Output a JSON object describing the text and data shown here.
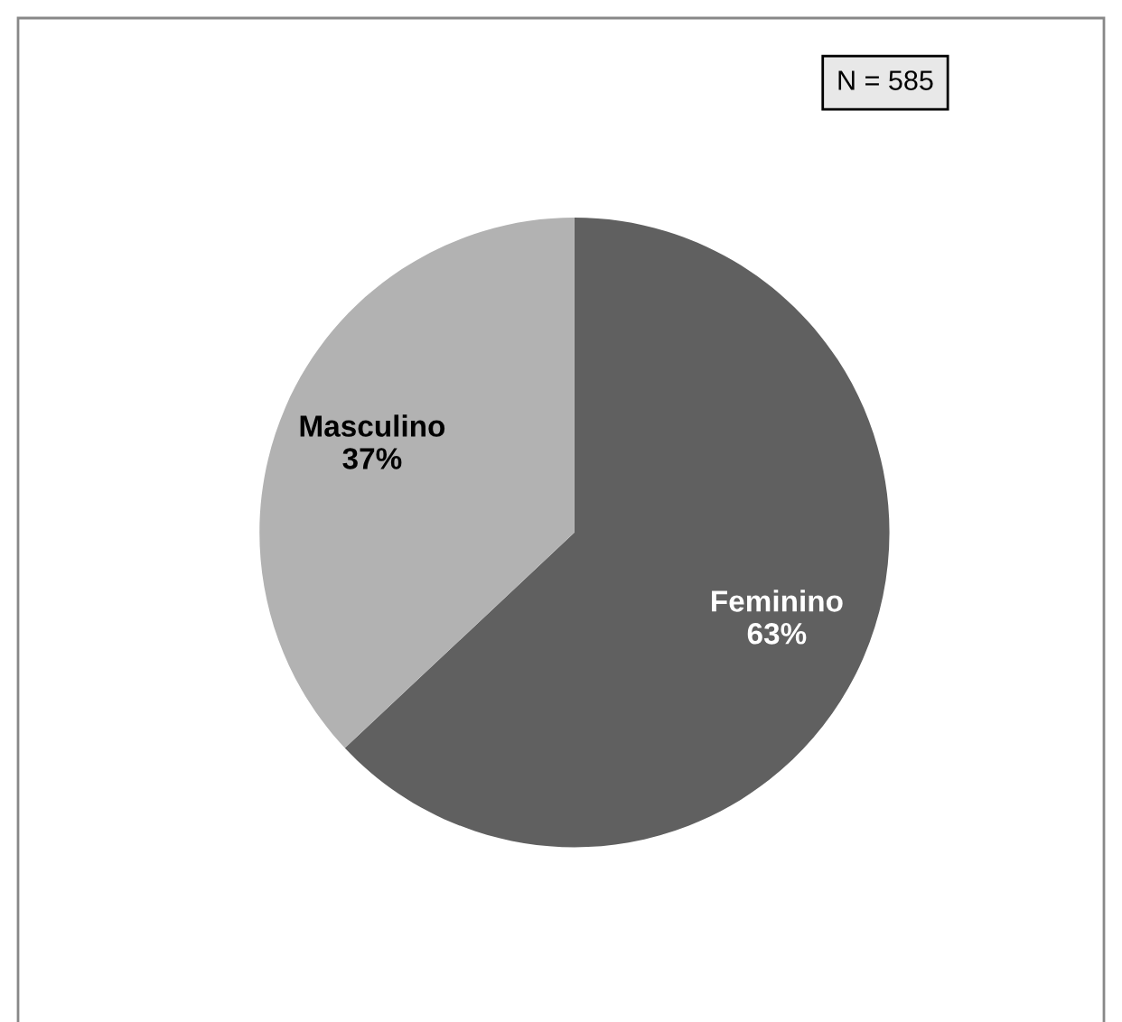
{
  "chart_data": {
    "type": "pie",
    "categories": [
      "Feminino",
      "Masculino"
    ],
    "values": [
      63,
      37
    ],
    "value_labels": [
      "63%",
      "37%"
    ],
    "colors": [
      "#606060",
      "#b2b2b2"
    ],
    "annotations": [
      "N = 585"
    ]
  }
}
